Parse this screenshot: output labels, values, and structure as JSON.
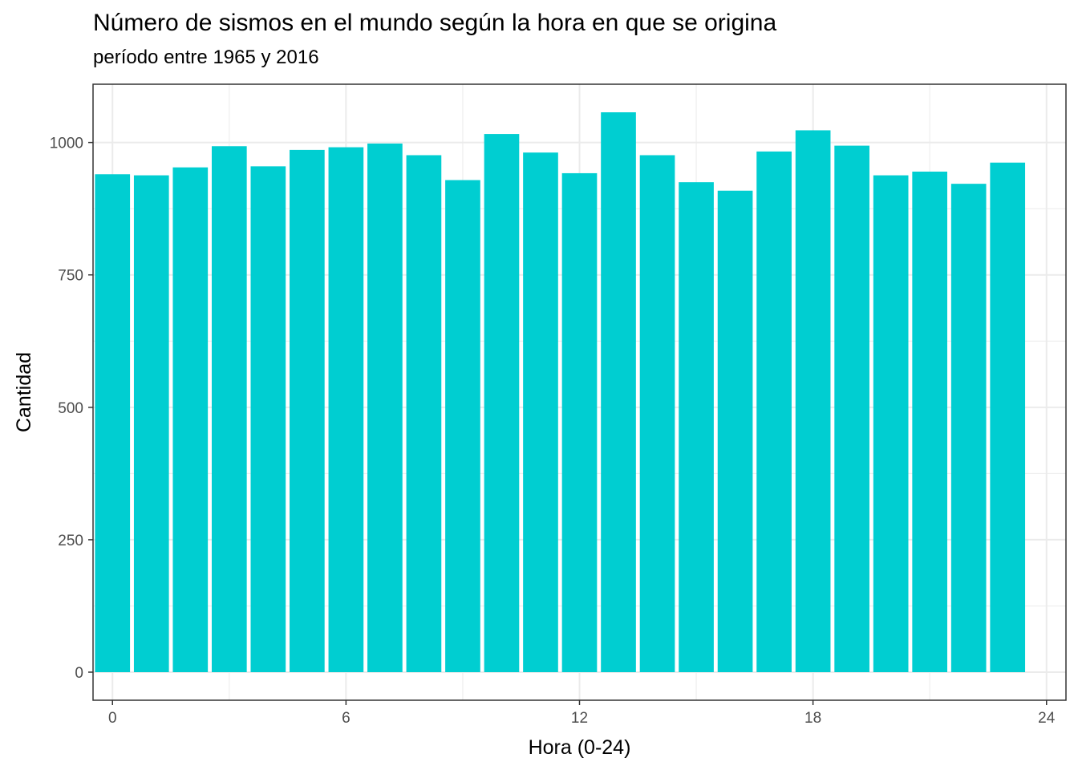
{
  "chart_data": {
    "type": "bar",
    "title": "Número de sismos en el mundo según la hora en que se origina",
    "subtitle": "período entre 1965 y 2016",
    "xlabel": "Hora (0-24)",
    "ylabel": "Cantidad",
    "x": [
      0,
      1,
      2,
      3,
      4,
      5,
      6,
      7,
      8,
      9,
      10,
      11,
      12,
      13,
      14,
      15,
      16,
      17,
      18,
      19,
      20,
      21,
      22,
      23
    ],
    "values": [
      940,
      938,
      953,
      993,
      955,
      986,
      991,
      998,
      976,
      929,
      1016,
      981,
      942,
      1057,
      976,
      925,
      909,
      983,
      1023,
      994,
      938,
      945,
      922,
      962
    ],
    "xlim": [
      -0.5,
      24.5
    ],
    "ylim": [
      -53,
      1110
    ],
    "x_ticks": [
      0,
      6,
      12,
      18,
      24
    ],
    "y_ticks": [
      0,
      250,
      500,
      750,
      1000
    ],
    "bar_color": "#00CED1",
    "grid": true,
    "legend": "none"
  }
}
